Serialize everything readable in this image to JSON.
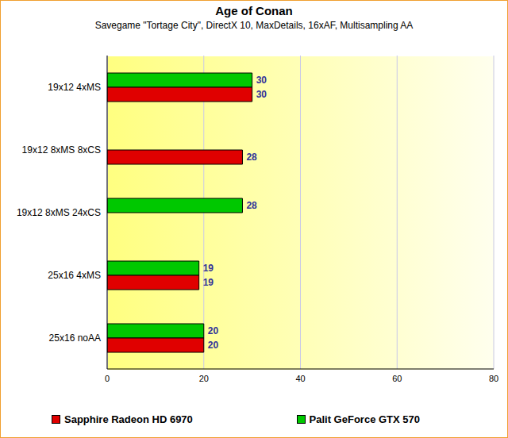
{
  "chart_data": {
    "type": "bar",
    "title": "Age of Conan",
    "subtitle": "Savegame \"Tortage City\", DirectX 10, MaxDetails, 16xAF, Multisampling AA",
    "orientation": "horizontal",
    "categories": [
      "19x12 4xMS",
      "19x12 8xMS 8xCS",
      "19x12 8xMS 24xCS",
      "25x16 4xMS",
      "25x16 noAA"
    ],
    "series": [
      {
        "name": "Sapphire Radeon HD 6970",
        "color": "#e00000",
        "values": [
          30,
          28,
          null,
          19,
          20
        ]
      },
      {
        "name": "Palit GeForce GTX 570",
        "color": "#00c800",
        "values": [
          30,
          null,
          28,
          19,
          20
        ]
      }
    ],
    "xlim": [
      0,
      80
    ],
    "xticks": [
      0,
      20,
      40,
      60,
      80
    ],
    "grid": true,
    "data_labels": true,
    "legend": "bottom"
  }
}
